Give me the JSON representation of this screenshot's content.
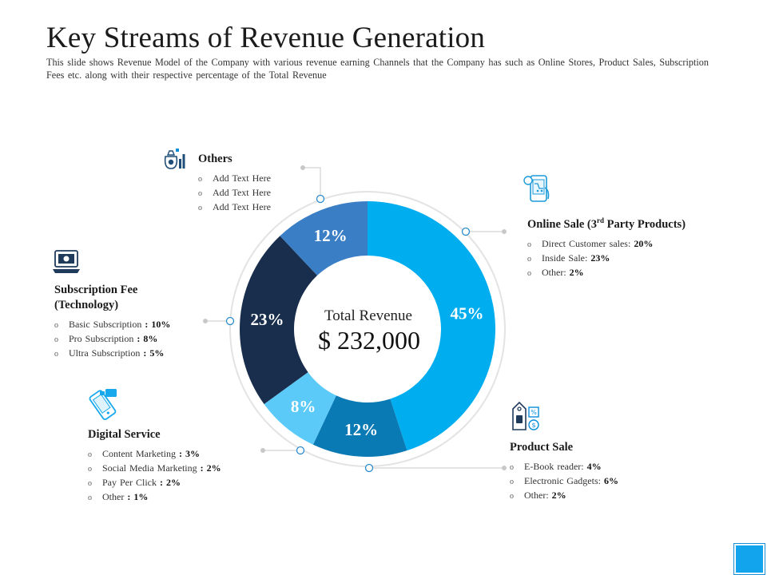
{
  "title": "Key Streams of Revenue Generation",
  "subtitle": "This slide shows Revenue Model of the Company with various revenue earning Channels that the Company has such as Online Stores, Product Sales, Subscription Fees etc. along with their respective percentage of the Total Revenue",
  "center": {
    "label": "Total Revenue",
    "value": "$ 232,000"
  },
  "chart_data": {
    "type": "pie",
    "title": "Total Revenue",
    "center_value": "$ 232,000",
    "slices": [
      {
        "name": "Online Sale (3rd Party Products)",
        "value": 45,
        "label": "45%",
        "color": "#00adef"
      },
      {
        "name": "Product Sale",
        "value": 12,
        "label": "12%",
        "color": "#0a7ab5"
      },
      {
        "name": "Digital Service",
        "value": 8,
        "label": "8%",
        "color": "#5ccaf8"
      },
      {
        "name": "Subscription Fee (Technology)",
        "value": 23,
        "label": "23%",
        "color": "#182e4c"
      },
      {
        "name": "Others",
        "value": 12,
        "label": "12%",
        "color": "#3a7ec5"
      }
    ]
  },
  "sections": {
    "others": {
      "heading": "Others",
      "items": [
        {
          "text": "Add Text Here",
          "value": ""
        },
        {
          "text": "Add Text Here",
          "value": ""
        },
        {
          "text": "Add Text Here",
          "value": ""
        }
      ]
    },
    "online": {
      "heading_main": "Online Sale (3",
      "heading_sup": "rd",
      "heading_rest": " Party Products)",
      "items": [
        {
          "text": "Direct Customer sales:",
          "value": "20%"
        },
        {
          "text": "Inside Sale:",
          "value": "23%"
        },
        {
          "text": "Other:",
          "value": "2%"
        }
      ]
    },
    "subscription": {
      "heading": "Subscription Fee (Technology)",
      "items": [
        {
          "text": "Basic Subscription",
          "value": ": 10%"
        },
        {
          "text": "Pro Subscription",
          "value": ": 8%"
        },
        {
          "text": "Ultra Subscription",
          "value": ": 5%"
        }
      ]
    },
    "digital": {
      "heading": "Digital Service",
      "items": [
        {
          "text": "Content Marketing",
          "value": ": 3%"
        },
        {
          "text": "Social Media Marketing",
          "value": ": 2%"
        },
        {
          "text": "Pay Per Click",
          "value": ": 2%"
        },
        {
          "text": "Other",
          "value": ": 1%"
        }
      ]
    },
    "product": {
      "heading": "Product Sale",
      "items": [
        {
          "text": "E-Book reader:",
          "value": "4%"
        },
        {
          "text": "Electronic Gadgets:",
          "value": "6%"
        },
        {
          "text": "Other:",
          "value": "2%"
        }
      ]
    }
  },
  "bullet_char": "o",
  "icons": {
    "others": "money-bag-chart-icon",
    "online": "mobile-shopping-icon",
    "subscription": "laptop-subscription-icon",
    "digital": "digital-device-icon",
    "product": "price-tag-icon"
  }
}
